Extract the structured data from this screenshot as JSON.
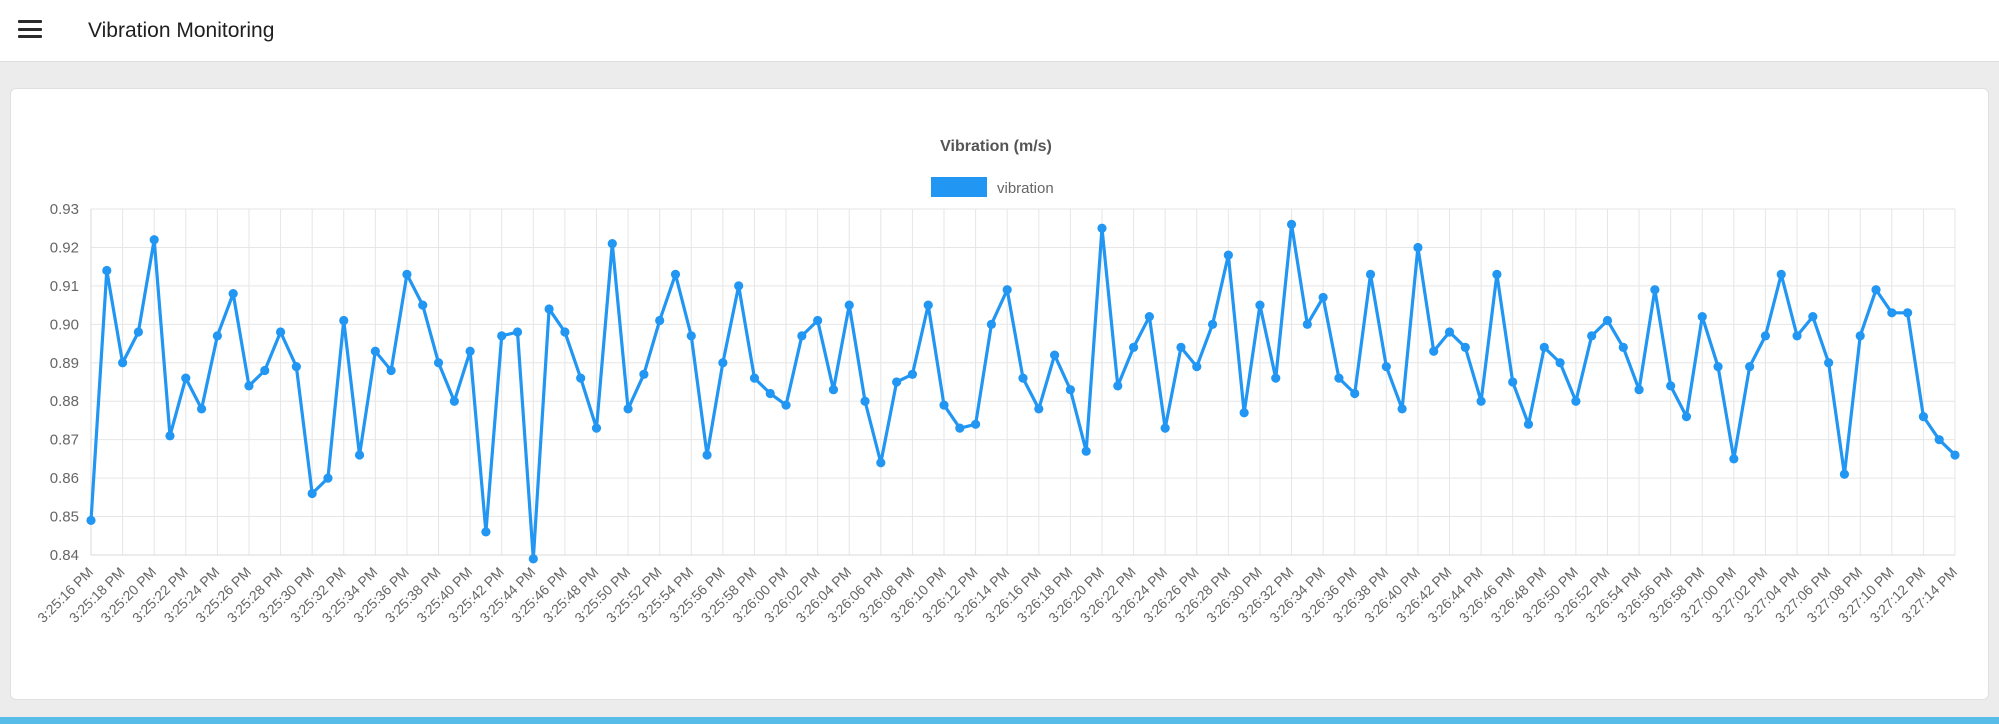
{
  "page": {
    "title": "Vibration Monitoring"
  },
  "colors": {
    "accent_blue": "#2196F3",
    "grid": "#e6e6e6",
    "axis_text": "#666666",
    "title_text": "#555555",
    "page_bg": "#ececec",
    "card_bg": "#ffffff",
    "footer_bar": "#58bce8"
  },
  "chart_data": {
    "type": "line",
    "title": "Vibration (m/s)",
    "legend": {
      "label": "vibration",
      "position": "top"
    },
    "grid": true,
    "ylabel": "",
    "xlabel": "",
    "ylim": [
      0.84,
      0.93
    ],
    "y_ticks": [
      "0.93",
      "0.92",
      "0.91",
      "0.90",
      "0.89",
      "0.88",
      "0.87",
      "0.86",
      "0.85",
      "0.84"
    ],
    "points_per_tick": 2,
    "x_tick_labels": [
      "3:25:16 PM",
      "3:25:18 PM",
      "3:25:20 PM",
      "3:25:22 PM",
      "3:25:24 PM",
      "3:25:26 PM",
      "3:25:28 PM",
      "3:25:30 PM",
      "3:25:32 PM",
      "3:25:34 PM",
      "3:25:36 PM",
      "3:25:38 PM",
      "3:25:40 PM",
      "3:25:42 PM",
      "3:25:44 PM",
      "3:25:46 PM",
      "3:25:48 PM",
      "3:25:50 PM",
      "3:25:52 PM",
      "3:25:54 PM",
      "3:25:56 PM",
      "3:25:58 PM",
      "3:26:00 PM",
      "3:26:02 PM",
      "3:26:04 PM",
      "3:26:06 PM",
      "3:26:08 PM",
      "3:26:10 PM",
      "3:26:12 PM",
      "3:26:14 PM",
      "3:26:16 PM",
      "3:26:18 PM",
      "3:26:20 PM",
      "3:26:22 PM",
      "3:26:24 PM",
      "3:26:26 PM",
      "3:26:28 PM",
      "3:26:30 PM",
      "3:26:32 PM",
      "3:26:34 PM",
      "3:26:36 PM",
      "3:26:38 PM",
      "3:26:40 PM",
      "3:26:42 PM",
      "3:26:44 PM",
      "3:26:46 PM",
      "3:26:48 PM",
      "3:26:50 PM",
      "3:26:52 PM",
      "3:26:54 PM",
      "3:26:56 PM",
      "3:26:58 PM",
      "3:27:00 PM",
      "3:27:02 PM",
      "3:27:04 PM",
      "3:27:06 PM",
      "3:27:08 PM",
      "3:27:10 PM",
      "3:27:12 PM",
      "3:27:14 PM"
    ],
    "series": [
      {
        "name": "vibration",
        "color": "#2196F3",
        "values": [
          0.849,
          0.914,
          0.89,
          0.898,
          0.922,
          0.871,
          0.886,
          0.878,
          0.897,
          0.908,
          0.884,
          0.888,
          0.898,
          0.889,
          0.856,
          0.86,
          0.901,
          0.866,
          0.893,
          0.888,
          0.913,
          0.905,
          0.89,
          0.88,
          0.893,
          0.846,
          0.897,
          0.898,
          0.839,
          0.904,
          0.898,
          0.886,
          0.873,
          0.921,
          0.878,
          0.887,
          0.901,
          0.913,
          0.897,
          0.866,
          0.89,
          0.91,
          0.886,
          0.882,
          0.879,
          0.897,
          0.901,
          0.883,
          0.905,
          0.88,
          0.864,
          0.885,
          0.887,
          0.905,
          0.879,
          0.873,
          0.874,
          0.9,
          0.909,
          0.886,
          0.878,
          0.892,
          0.883,
          0.867,
          0.925,
          0.884,
          0.894,
          0.902,
          0.873,
          0.894,
          0.889,
          0.9,
          0.918,
          0.877,
          0.905,
          0.886,
          0.926,
          0.9,
          0.907,
          0.886,
          0.882,
          0.913,
          0.889,
          0.878,
          0.92,
          0.893,
          0.898,
          0.894,
          0.88,
          0.913,
          0.885,
          0.874,
          0.894,
          0.89,
          0.88,
          0.897,
          0.901,
          0.894,
          0.883,
          0.909,
          0.884,
          0.876,
          0.902,
          0.889,
          0.865,
          0.889,
          0.897,
          0.913,
          0.897,
          0.902,
          0.89,
          0.861,
          0.897,
          0.909,
          0.903,
          0.903,
          0.876,
          0.87,
          0.866
        ]
      }
    ]
  }
}
